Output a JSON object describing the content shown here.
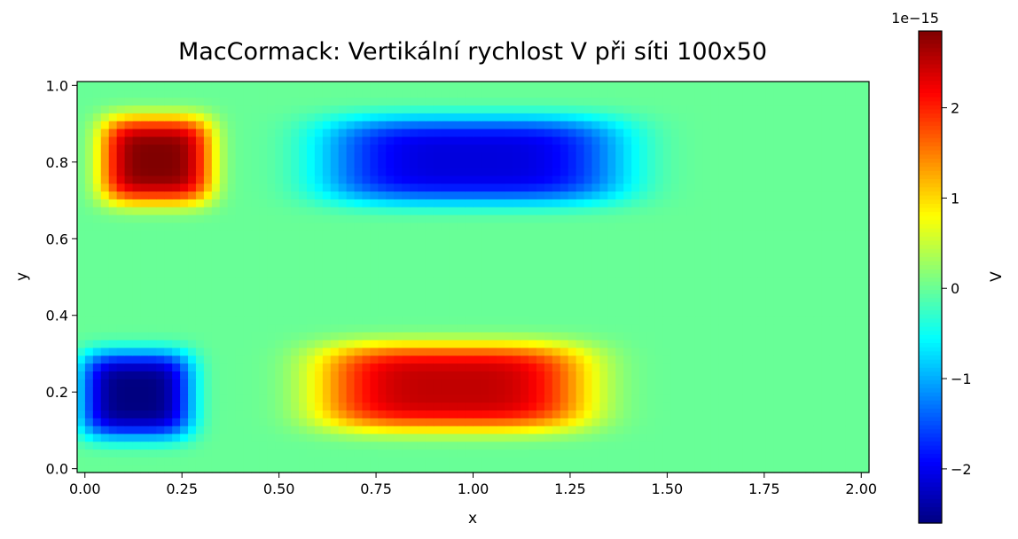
{
  "chart_data": {
    "type": "heatmap",
    "title": "MacCormack: Vertikální rychlost V při síti 100x50",
    "xlabel": "x",
    "ylabel": "y",
    "xlim": [
      0,
      2
    ],
    "ylim": [
      0,
      1
    ],
    "grid_size": "100x50",
    "grid": false,
    "colormap": "jet",
    "x_ticks": [
      {
        "value": 0.0,
        "label": "0.00"
      },
      {
        "value": 0.25,
        "label": "0.25"
      },
      {
        "value": 0.5,
        "label": "0.50"
      },
      {
        "value": 0.75,
        "label": "0.75"
      },
      {
        "value": 1.0,
        "label": "1.00"
      },
      {
        "value": 1.25,
        "label": "1.25"
      },
      {
        "value": 1.5,
        "label": "1.50"
      },
      {
        "value": 1.75,
        "label": "1.75"
      },
      {
        "value": 2.0,
        "label": "2.00"
      }
    ],
    "y_ticks": [
      {
        "value": 0.0,
        "label": "0.0"
      },
      {
        "value": 0.2,
        "label": "0.2"
      },
      {
        "value": 0.4,
        "label": "0.4"
      },
      {
        "value": 0.6,
        "label": "0.6"
      },
      {
        "value": 0.8,
        "label": "0.8"
      },
      {
        "value": 1.0,
        "label": "1.0"
      }
    ],
    "colorbar": {
      "label": "V",
      "offset_text": "1e−15",
      "min": -2.6,
      "max": 2.85,
      "ticks": [
        {
          "value": -2,
          "label": "−2"
        },
        {
          "value": -1,
          "label": "−1"
        },
        {
          "value": 0,
          "label": "0"
        },
        {
          "value": 1,
          "label": "1"
        },
        {
          "value": 2,
          "label": "2"
        }
      ]
    },
    "features": [
      {
        "kind": "max",
        "x": 0.2,
        "y": 0.8,
        "amplitude": 2.85,
        "sx": 0.14,
        "sy": 0.11
      },
      {
        "kind": "min",
        "x": 0.15,
        "y": 0.2,
        "amplitude": -2.6,
        "sx": 0.14,
        "sy": 0.11
      },
      {
        "kind": "min",
        "x": 1.0,
        "y": 0.8,
        "amplitude": -2.1,
        "sx": 0.38,
        "sy": 0.11
      },
      {
        "kind": "max",
        "x": 0.95,
        "y": 0.22,
        "amplitude": 2.5,
        "sx": 0.34,
        "sy": 0.11
      }
    ]
  }
}
